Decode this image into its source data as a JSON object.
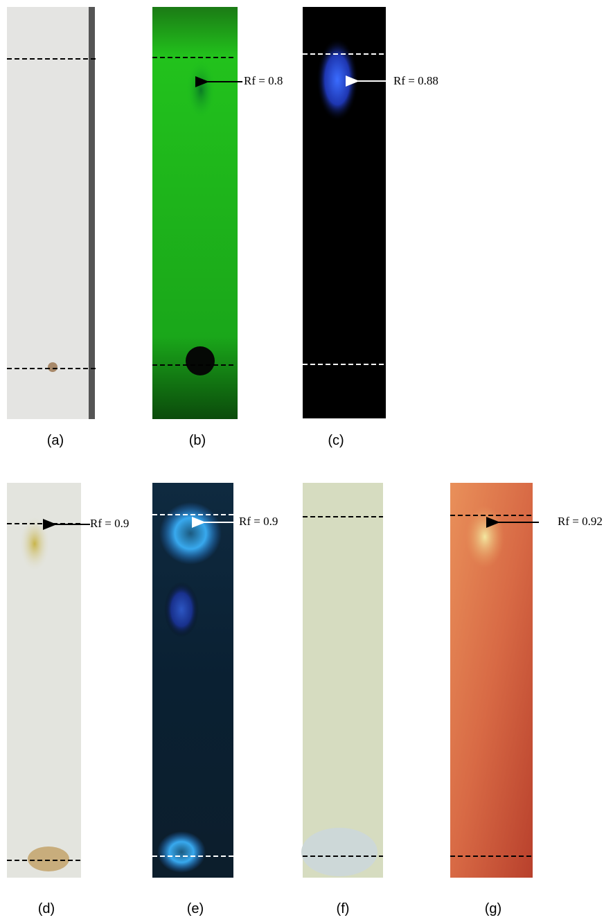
{
  "panels": [
    {
      "label": "(a)"
    },
    {
      "label": "(b)",
      "annotation": "Rf = 0.8"
    },
    {
      "label": "(c)",
      "annotation": "Rf = 0.88"
    },
    {
      "label": "(d)",
      "annotation": "Rf = 0.9"
    },
    {
      "label": "(e)",
      "annotation": "Rf = 0.9"
    },
    {
      "label": "(f)"
    },
    {
      "label": "(g)",
      "annotation": "Rf = 0.92"
    }
  ]
}
